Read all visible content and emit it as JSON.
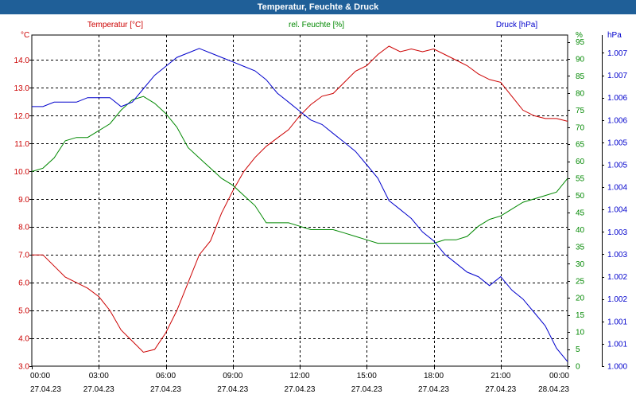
{
  "window": {
    "title": "Temperatur, Feuchte & Druck"
  },
  "chart_data": {
    "type": "line",
    "title": "Temperatur, Feuchte & Druck",
    "grid": true,
    "x_ticks": [
      {
        "time": "00:00",
        "date": "27.04.23"
      },
      {
        "time": "03:00",
        "date": "27.04.23"
      },
      {
        "time": "06:00",
        "date": "27.04.23"
      },
      {
        "time": "09:00",
        "date": "27.04.23"
      },
      {
        "time": "12:00",
        "date": "27.04.23"
      },
      {
        "time": "15:00",
        "date": "27.04.23"
      },
      {
        "time": "18:00",
        "date": "27.04.23"
      },
      {
        "time": "21:00",
        "date": "27.04.23"
      },
      {
        "time": "00:00",
        "date": "28.04.23"
      }
    ],
    "axes": {
      "left": {
        "unit": "°C",
        "color": "#cc0000",
        "ylim": [
          3.0,
          14.9
        ],
        "tick_values": [
          3.0,
          4.0,
          5.0,
          6.0,
          7.0,
          8.0,
          9.0,
          10.0,
          11.0,
          12.0,
          13.0,
          14.0
        ],
        "tick_labels": [
          "3.0",
          "4.0",
          "5.0",
          "6.0",
          "7.0",
          "8.0",
          "9.0",
          "10.0",
          "11.0",
          "12.0",
          "13.0",
          "14.0"
        ]
      },
      "mid": {
        "unit": "%",
        "color": "#008800",
        "ylim": [
          0,
          97
        ],
        "tick_values": [
          0,
          5,
          10,
          15,
          20,
          25,
          30,
          35,
          40,
          45,
          50,
          55,
          60,
          65,
          70,
          75,
          80,
          85,
          90,
          95
        ],
        "tick_labels": [
          "0",
          "5",
          "10",
          "15",
          "20",
          "25",
          "30",
          "35",
          "40",
          "45",
          "50",
          "55",
          "60",
          "65",
          "70",
          "75",
          "80",
          "85",
          "90",
          "95"
        ]
      },
      "right": {
        "unit": "hPa",
        "color": "#0000cc",
        "ylim": [
          1000.0,
          1007.4
        ],
        "tick_values": [
          1000.0,
          1000.5,
          1001.0,
          1001.5,
          1002.0,
          1002.5,
          1003.0,
          1003.5,
          1004.0,
          1004.5,
          1005.0,
          1005.5,
          1006.0,
          1006.5,
          1007.0
        ],
        "tick_labels": [
          "1.000",
          "1.001",
          "1.001",
          "1.002",
          "1.002",
          "1.003",
          "1.003",
          "1.004",
          "1.004",
          "1.005",
          "1.005",
          "1.006",
          "1.006",
          "1.007",
          "1.007"
        ]
      }
    },
    "series": [
      {
        "name": "Temperatur [°C]",
        "axis": "left",
        "color": "#cc0000",
        "x_hours": [
          0,
          0.5,
          1,
          1.5,
          2,
          2.5,
          3,
          3.5,
          4,
          4.5,
          5,
          5.5,
          6,
          6.5,
          7,
          7.5,
          8,
          8.5,
          9,
          9.5,
          10,
          10.5,
          11,
          11.5,
          12,
          12.5,
          13,
          13.5,
          14,
          14.5,
          15,
          15.5,
          16,
          16.5,
          17,
          17.5,
          18,
          18.5,
          19,
          19.5,
          20,
          20.5,
          21,
          21.5,
          22,
          22.5,
          23,
          23.5,
          24
        ],
        "values": [
          7.0,
          7.0,
          6.6,
          6.2,
          6.0,
          5.8,
          5.5,
          5.0,
          4.3,
          3.9,
          3.5,
          3.6,
          4.2,
          5.0,
          6.0,
          7.0,
          7.5,
          8.5,
          9.3,
          10.0,
          10.5,
          10.9,
          11.2,
          11.5,
          12.0,
          12.4,
          12.7,
          12.8,
          13.2,
          13.6,
          13.8,
          14.2,
          14.5,
          14.3,
          14.4,
          14.3,
          14.4,
          14.2,
          14.0,
          13.8,
          13.5,
          13.3,
          13.2,
          12.7,
          12.2,
          12.0,
          11.9,
          11.9,
          11.8
        ]
      },
      {
        "name": "rel. Feuchte [%]",
        "axis": "mid",
        "color": "#008800",
        "x_hours": [
          0,
          0.5,
          1,
          1.5,
          2,
          2.5,
          3,
          3.5,
          4,
          4.5,
          5,
          5.5,
          6,
          6.5,
          7,
          7.5,
          8,
          8.5,
          9,
          9.5,
          10,
          10.5,
          11,
          11.5,
          12,
          12.5,
          13,
          13.5,
          14,
          14.5,
          15,
          15.5,
          16,
          16.5,
          17,
          17.5,
          18,
          18.5,
          19,
          19.5,
          20,
          20.5,
          21,
          21.5,
          22,
          22.5,
          23,
          23.5,
          24
        ],
        "values": [
          57,
          58,
          61,
          66,
          67,
          67,
          69,
          71,
          75,
          78,
          79,
          77,
          74,
          70,
          64,
          61,
          58,
          55,
          53,
          50,
          47,
          42,
          42,
          42,
          41,
          40,
          40,
          40,
          39,
          38,
          37,
          36,
          36,
          36,
          36,
          36,
          36,
          37,
          37,
          38,
          41,
          43,
          44,
          46,
          48,
          49,
          50,
          51,
          55
        ]
      },
      {
        "name": "Druck [hPa]",
        "axis": "right",
        "color": "#0000cc",
        "x_hours": [
          0,
          0.5,
          1,
          1.5,
          2,
          2.5,
          3,
          3.5,
          4,
          4.5,
          5,
          5.5,
          6,
          6.5,
          7,
          7.5,
          8,
          8.5,
          9,
          9.5,
          10,
          10.5,
          11,
          11.5,
          12,
          12.5,
          13,
          13.5,
          14,
          14.5,
          15,
          15.5,
          16,
          16.5,
          17,
          17.5,
          18,
          18.5,
          19,
          19.5,
          20,
          20.5,
          21,
          21.5,
          22,
          22.5,
          23,
          23.5,
          24
        ],
        "values": [
          1005.8,
          1005.8,
          1005.9,
          1005.9,
          1005.9,
          1006.0,
          1006.0,
          1006.0,
          1005.8,
          1005.9,
          1006.2,
          1006.5,
          1006.7,
          1006.9,
          1007.0,
          1007.1,
          1007.0,
          1006.9,
          1006.8,
          1006.7,
          1006.6,
          1006.4,
          1006.1,
          1005.9,
          1005.7,
          1005.5,
          1005.4,
          1005.2,
          1005.0,
          1004.8,
          1004.5,
          1004.2,
          1003.7,
          1003.5,
          1003.3,
          1003.0,
          1002.8,
          1002.5,
          1002.3,
          1002.1,
          1002.0,
          1001.8,
          1002.0,
          1001.7,
          1001.5,
          1001.2,
          1000.9,
          1000.4,
          1000.1
        ]
      }
    ]
  }
}
